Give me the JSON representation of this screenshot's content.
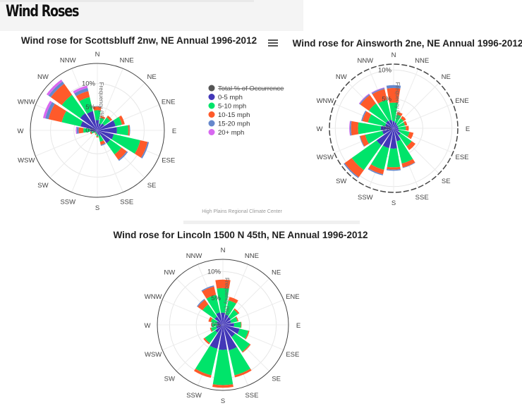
{
  "header": {
    "title": "Wind Roses"
  },
  "menu_icon": "hamburger-menu-icon",
  "credit": "High Plains Regional Climate Center",
  "legend": [
    {
      "label": "Total % of Occurrence",
      "color": "#555555",
      "hidden": true
    },
    {
      "label": "0-5 mph",
      "color": "#4338b8"
    },
    {
      "label": "5-10 mph",
      "color": "#00e46a"
    },
    {
      "label": "10-15 mph",
      "color": "#ff5a2a"
    },
    {
      "label": "15-20 mph",
      "color": "#6688cc"
    },
    {
      "label": "20+ mph",
      "color": "#d868f0"
    }
  ],
  "chart_data": [
    {
      "type": "barpolar",
      "title": "Wind rose for Scottsbluff 2nw, NE Annual 1996-2012",
      "radial_axis_title": "Frequency (%)",
      "radial_ticks": [
        "0%",
        "5%",
        "10%"
      ],
      "radial_range": [
        0,
        14.3
      ],
      "directions": [
        "N",
        "NNE",
        "NE",
        "ENE",
        "E",
        "ESE",
        "SE",
        "SSE",
        "S",
        "SSW",
        "SW",
        "WSW",
        "W",
        "WNW",
        "NW",
        "NNW"
      ],
      "series": [
        {
          "name": "0-5 mph",
          "values": [
            2.2,
            1.5,
            1.8,
            4.0,
            4.2,
            3.6,
            3.4,
            1.2,
            0.8,
            0.5,
            0.4,
            0.7,
            1.5,
            3.7,
            4.5,
            4.2
          ]
        },
        {
          "name": "5-10 mph",
          "values": [
            2.1,
            1.3,
            1.6,
            1.4,
            2.4,
            5.8,
            2.9,
            1.3,
            0.5,
            0.3,
            0.3,
            0.6,
            1.5,
            4.1,
            4.8,
            3.1
          ]
        },
        {
          "name": "10-15 mph",
          "values": [
            0.8,
            0.4,
            0.5,
            0.6,
            0.3,
            1.6,
            1.4,
            0.7,
            0.2,
            0.2,
            0.1,
            0.3,
            1.0,
            2.9,
            2.9,
            1.3
          ]
        },
        {
          "name": "15-20 mph",
          "values": [
            0.1,
            0,
            0,
            0,
            0.1,
            0.3,
            0.3,
            0.2,
            0,
            0,
            0,
            0,
            0.4,
            0.7,
            0.6,
            0.7
          ]
        },
        {
          "name": "20+ mph",
          "values": [
            0,
            0,
            0,
            0,
            0,
            0,
            0,
            0,
            0,
            0,
            0,
            0,
            0.2,
            0.5,
            0.5,
            0.5
          ]
        }
      ]
    },
    {
      "type": "barpolar",
      "title": "Wind rose for Ainsworth 2ne, NE Annual 1996-2012",
      "radial_axis_title": "Frequency (%)",
      "radial_ticks": [
        "0%",
        "5%",
        "10%"
      ],
      "radial_range": [
        0,
        11
      ],
      "directions": [
        "N",
        "NNE",
        "NE",
        "ENE",
        "E",
        "ESE",
        "SE",
        "SSE",
        "S",
        "SSW",
        "SW",
        "WSW",
        "W",
        "WNW",
        "NW",
        "NNW"
      ],
      "series": [
        {
          "name": "0-5 mph",
          "values": [
            1.2,
            1.0,
            0.8,
            0.8,
            0.8,
            1.0,
            1.5,
            2.3,
            3.5,
            3.5,
            3.6,
            2.0,
            2.2,
            1.5,
            1.6,
            1.5
          ]
        },
        {
          "name": "5-10 mph",
          "values": [
            3.2,
            1.4,
            1.3,
            1.2,
            1.3,
            1.8,
            2.3,
            3.9,
            3.2,
            3.8,
            5.2,
            3.0,
            3.9,
            3.0,
            3.6,
            3.5
          ]
        },
        {
          "name": "10-15 mph",
          "values": [
            2.5,
            0.5,
            0.5,
            0.4,
            0.5,
            0.7,
            0.8,
            0.7,
            0.4,
            0.8,
            1.5,
            0.9,
            1.2,
            1.0,
            1.8,
            1.9
          ]
        },
        {
          "name": "15-20 mph",
          "values": [
            0.5,
            0,
            0,
            0,
            0,
            0,
            0,
            0.1,
            0.2,
            0.2,
            0.2,
            0.1,
            0.2,
            0.2,
            0.2,
            0.2
          ]
        },
        {
          "name": "20+ mph",
          "values": [
            0,
            0,
            0,
            0,
            0,
            0,
            0,
            0,
            0,
            0,
            0,
            0,
            0.1,
            0,
            0.1,
            0.1
          ]
        }
      ]
    },
    {
      "type": "barpolar",
      "title": "Wind rose for Lincoln 1500 N 45th, NE Annual 1996-2012",
      "radial_axis_title": "Frequency (%)",
      "radial_ticks": [
        "0%",
        "5%",
        "10%"
      ],
      "radial_range": [
        0,
        12.3
      ],
      "directions": [
        "N",
        "NNE",
        "NE",
        "ENE",
        "E",
        "ESE",
        "SE",
        "SSE",
        "S",
        "SSW",
        "SW",
        "WSW",
        "W",
        "WNW",
        "NW",
        "NNW"
      ],
      "series": [
        {
          "name": "0-5 mph",
          "values": [
            2.3,
            2.0,
            1.8,
            1.6,
            2.1,
            3.2,
            2.8,
            4.9,
            4.7,
            4.6,
            1.8,
            1.3,
            1.0,
            1.2,
            1.9,
            2.4
          ]
        },
        {
          "name": "5-10 mph",
          "values": [
            4.6,
            2.7,
            1.7,
            1.2,
            1.3,
            1.7,
            3.4,
            4.8,
            6.6,
            5.1,
            2.4,
            1.0,
            1.0,
            1.1,
            2.8,
            3.4
          ]
        },
        {
          "name": "10-15 mph",
          "values": [
            1.6,
            0.7,
            0.3,
            0.2,
            0.1,
            0.2,
            0.2,
            0.4,
            0.5,
            0.5,
            0.3,
            0.2,
            0.2,
            0.5,
            1.1,
            1.6
          ]
        },
        {
          "name": "15-20 mph",
          "values": [
            0,
            0,
            0,
            0,
            0,
            0,
            0,
            0,
            0,
            0,
            0,
            0,
            0,
            0,
            0.2,
            0.2
          ]
        },
        {
          "name": "20+ mph",
          "values": [
            0,
            0,
            0,
            0,
            0,
            0,
            0,
            0,
            0,
            0,
            0,
            0,
            0,
            0,
            0,
            0
          ]
        }
      ]
    }
  ]
}
